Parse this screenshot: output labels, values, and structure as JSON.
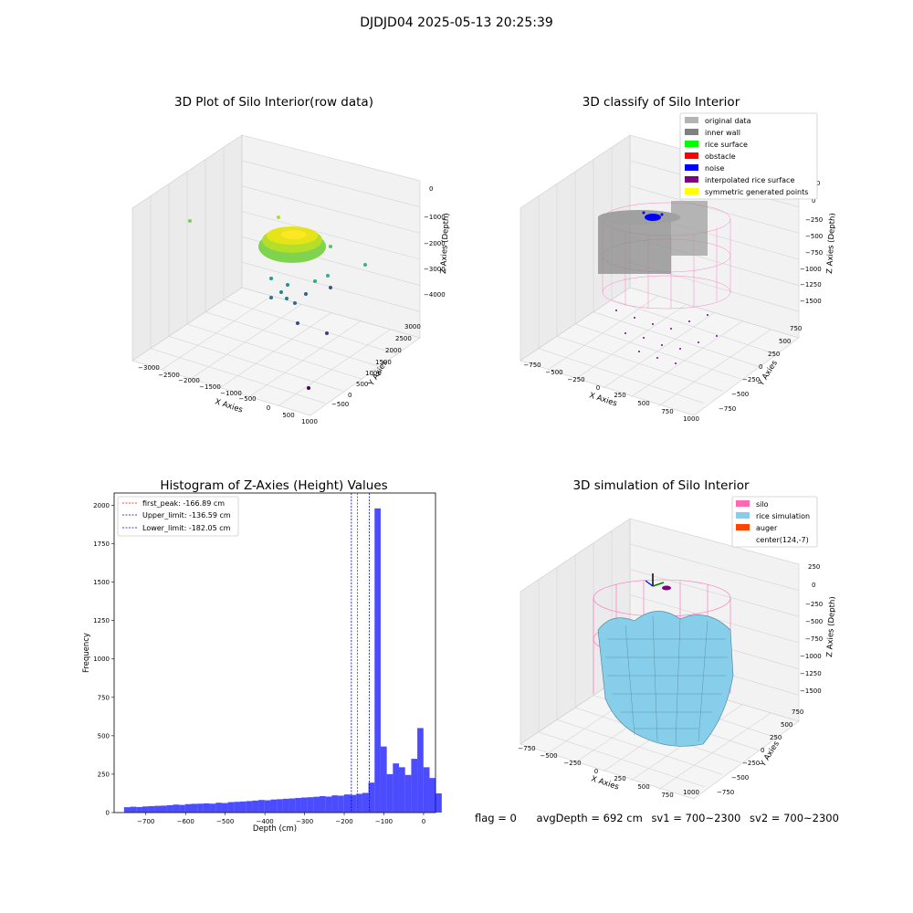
{
  "figure": {
    "suptitle": "DJDJD04 2025-05-13 20:25:39",
    "footer": {
      "flag": "flag = 0",
      "avg_depth": "avgDepth = 692 cm",
      "sv1": "sv1 = 700~2300",
      "sv2": "sv2 = 700~2300"
    }
  },
  "panels": {
    "raw": {
      "title": "3D Plot of Silo Interior(row data)",
      "xlabel": "X Axies",
      "ylabel": "Y Axies",
      "zlabel": "Z Axies (Depth)",
      "xticks": [
        "−3000",
        "−2500",
        "−2000",
        "−1500",
        "−1000",
        "−500",
        "0",
        "500",
        "1000"
      ],
      "yticks": [
        "−500",
        "0",
        "500",
        "1000",
        "1500",
        "2000",
        "2500",
        "3000"
      ],
      "zticks": [
        "0",
        "−1000",
        "−2000",
        "−3000",
        "−4000"
      ]
    },
    "classify": {
      "title": "3D classify of Silo Interior",
      "xlabel": "X Axies",
      "ylabel": "Y Axies",
      "zlabel": "Z Axies (Depth)",
      "xticks": [
        "−750",
        "−500",
        "−250",
        "0",
        "250",
        "500",
        "750",
        "1000"
      ],
      "yticks": [
        "−750",
        "−500",
        "−250",
        "0",
        "250",
        "500",
        "750"
      ],
      "zticks": [
        "250",
        "0",
        "−250",
        "−500",
        "−750",
        "−1000",
        "−1250",
        "−1500"
      ],
      "legend": [
        {
          "label": "original data",
          "color": "#b3b3b3"
        },
        {
          "label": "inner wall",
          "color": "#808080"
        },
        {
          "label": "rice surface",
          "color": "#00ff00"
        },
        {
          "label": "obstacle",
          "color": "#ff0000"
        },
        {
          "label": "noise",
          "color": "#0000ff"
        },
        {
          "label": "interpolated rice surface",
          "color": "#800080"
        },
        {
          "label": "symmetric generated points",
          "color": "#ffff00"
        }
      ]
    },
    "simulation": {
      "title": "3D simulation of Silo Interior",
      "xlabel": "X Axies",
      "ylabel": "Y Axies",
      "zlabel": "Z Axies (Depth)",
      "xticks": [
        "−750",
        "−500",
        "−250",
        "0",
        "250",
        "500",
        "750",
        "1000"
      ],
      "yticks": [
        "−750",
        "−500",
        "−250",
        "0",
        "250",
        "500",
        "750"
      ],
      "zticks": [
        "250",
        "0",
        "−250",
        "−500",
        "−750",
        "−1000",
        "−1250",
        "−1500"
      ],
      "legend": [
        {
          "label": "silo",
          "color": "#ff69b4"
        },
        {
          "label": "rice simulation",
          "color": "#87ceeb"
        },
        {
          "label": "auger",
          "color": "#ff4500"
        },
        {
          "label": "center(124,-7)",
          "color": "#ffffff"
        }
      ]
    }
  },
  "chart_data": {
    "type": "bar",
    "title": "Histogram of Z-Axies (Height) Values",
    "xlabel": "Depth (cm)",
    "ylabel": "Frequency",
    "xlim": [
      -780,
      30
    ],
    "ylim": [
      0,
      2080
    ],
    "xticks": [
      -700,
      -600,
      -500,
      -400,
      -300,
      -200,
      -100,
      0
    ],
    "yticks": [
      0,
      250,
      500,
      750,
      1000,
      1250,
      1500,
      1750,
      2000
    ],
    "bin_width": 15.4,
    "bin_start": -755,
    "values": [
      35,
      38,
      36,
      40,
      42,
      44,
      45,
      48,
      52,
      50,
      55,
      57,
      58,
      60,
      58,
      64,
      62,
      68,
      70,
      72,
      75,
      78,
      82,
      80,
      85,
      87,
      90,
      92,
      95,
      98,
      100,
      103,
      107,
      104,
      112,
      110,
      118,
      115,
      122,
      128,
      195,
      1980,
      430,
      250,
      320,
      295,
      245,
      350,
      550,
      295,
      225,
      125
    ],
    "color": "#0000ff",
    "lines": [
      {
        "label": "first_peak: -166.89 cm",
        "x": -166.89,
        "color": "#ff0000"
      },
      {
        "label": "Upper_limit: -136.59 cm",
        "x": -136.59,
        "color": "#0000cd"
      },
      {
        "label": "Lower_limit: -182.05 cm",
        "x": -182.05,
        "color": "#0000cd"
      }
    ],
    "legend_position": "upper left"
  }
}
